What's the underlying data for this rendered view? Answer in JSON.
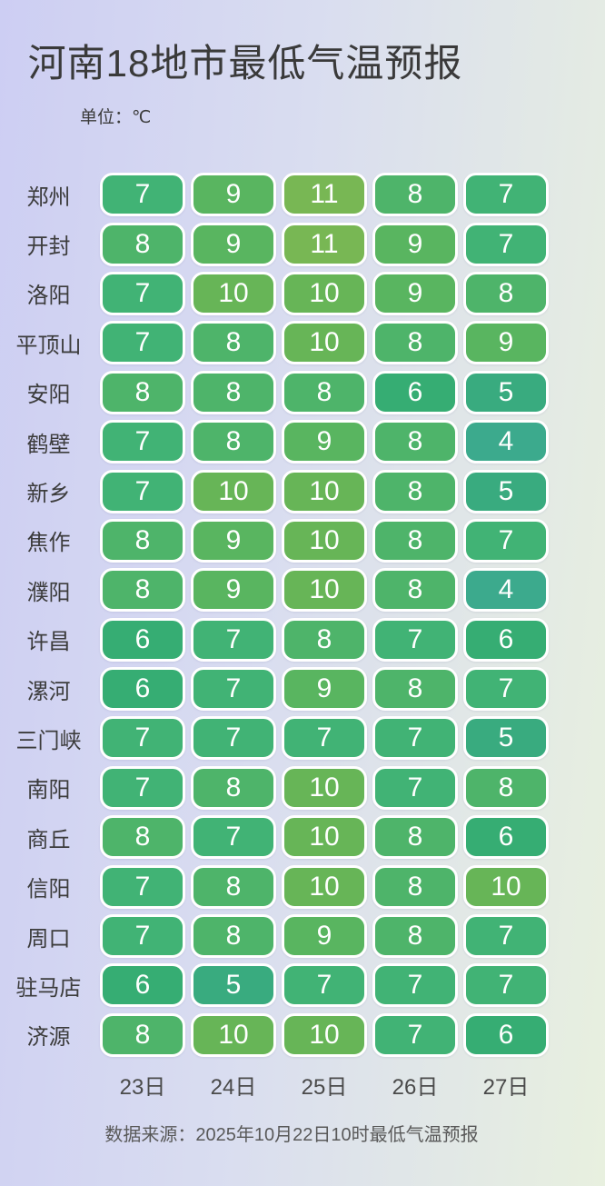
{
  "title": "河南18地市最低气温预报",
  "unit_label": "单位：℃",
  "source_note": "数据来源：2025年10月22日10时最低气温预报",
  "background": {
    "left": "#cdcef3",
    "mid": "#d9ddf0",
    "right": "#e8f0df"
  },
  "temp_colors": {
    "4": "#3caa8d",
    "5": "#39ab7f",
    "6": "#36ad73",
    "7": "#41b375",
    "8": "#4eb46a",
    "9": "#59b560",
    "10": "#67b557",
    "11": "#78b754"
  },
  "chart_data": {
    "type": "heatmap",
    "title": "河南18地市最低气温预报",
    "unit": "℃",
    "categories": [
      "23日",
      "24日",
      "25日",
      "26日",
      "27日"
    ],
    "rows": [
      {
        "city": "郑州",
        "values": [
          7,
          9,
          11,
          8,
          7
        ]
      },
      {
        "city": "开封",
        "values": [
          8,
          9,
          11,
          9,
          7
        ]
      },
      {
        "city": "洛阳",
        "values": [
          7,
          10,
          10,
          9,
          8
        ]
      },
      {
        "city": "平顶山",
        "values": [
          7,
          8,
          10,
          8,
          9
        ]
      },
      {
        "city": "安阳",
        "values": [
          8,
          8,
          8,
          6,
          5
        ]
      },
      {
        "city": "鹤壁",
        "values": [
          7,
          8,
          9,
          8,
          4
        ]
      },
      {
        "city": "新乡",
        "values": [
          7,
          10,
          10,
          8,
          5
        ]
      },
      {
        "city": "焦作",
        "values": [
          8,
          9,
          10,
          8,
          7
        ]
      },
      {
        "city": "濮阳",
        "values": [
          8,
          9,
          10,
          8,
          4
        ]
      },
      {
        "city": "许昌",
        "values": [
          6,
          7,
          8,
          7,
          6
        ]
      },
      {
        "city": "漯河",
        "values": [
          6,
          7,
          9,
          8,
          7
        ]
      },
      {
        "city": "三门峡",
        "values": [
          7,
          7,
          7,
          7,
          5
        ]
      },
      {
        "city": "南阳",
        "values": [
          7,
          8,
          10,
          7,
          8
        ]
      },
      {
        "city": "商丘",
        "values": [
          8,
          7,
          10,
          8,
          6
        ]
      },
      {
        "city": "信阳",
        "values": [
          7,
          8,
          10,
          8,
          10
        ]
      },
      {
        "city": "周口",
        "values": [
          7,
          8,
          9,
          8,
          7
        ]
      },
      {
        "city": "驻马店",
        "values": [
          6,
          5,
          7,
          7,
          7
        ]
      },
      {
        "city": "济源",
        "values": [
          8,
          10,
          10,
          7,
          6
        ]
      }
    ],
    "value_range": [
      4,
      11
    ],
    "legend": "cell color encodes temperature: teal (cold) to yellow-green (warm)"
  }
}
